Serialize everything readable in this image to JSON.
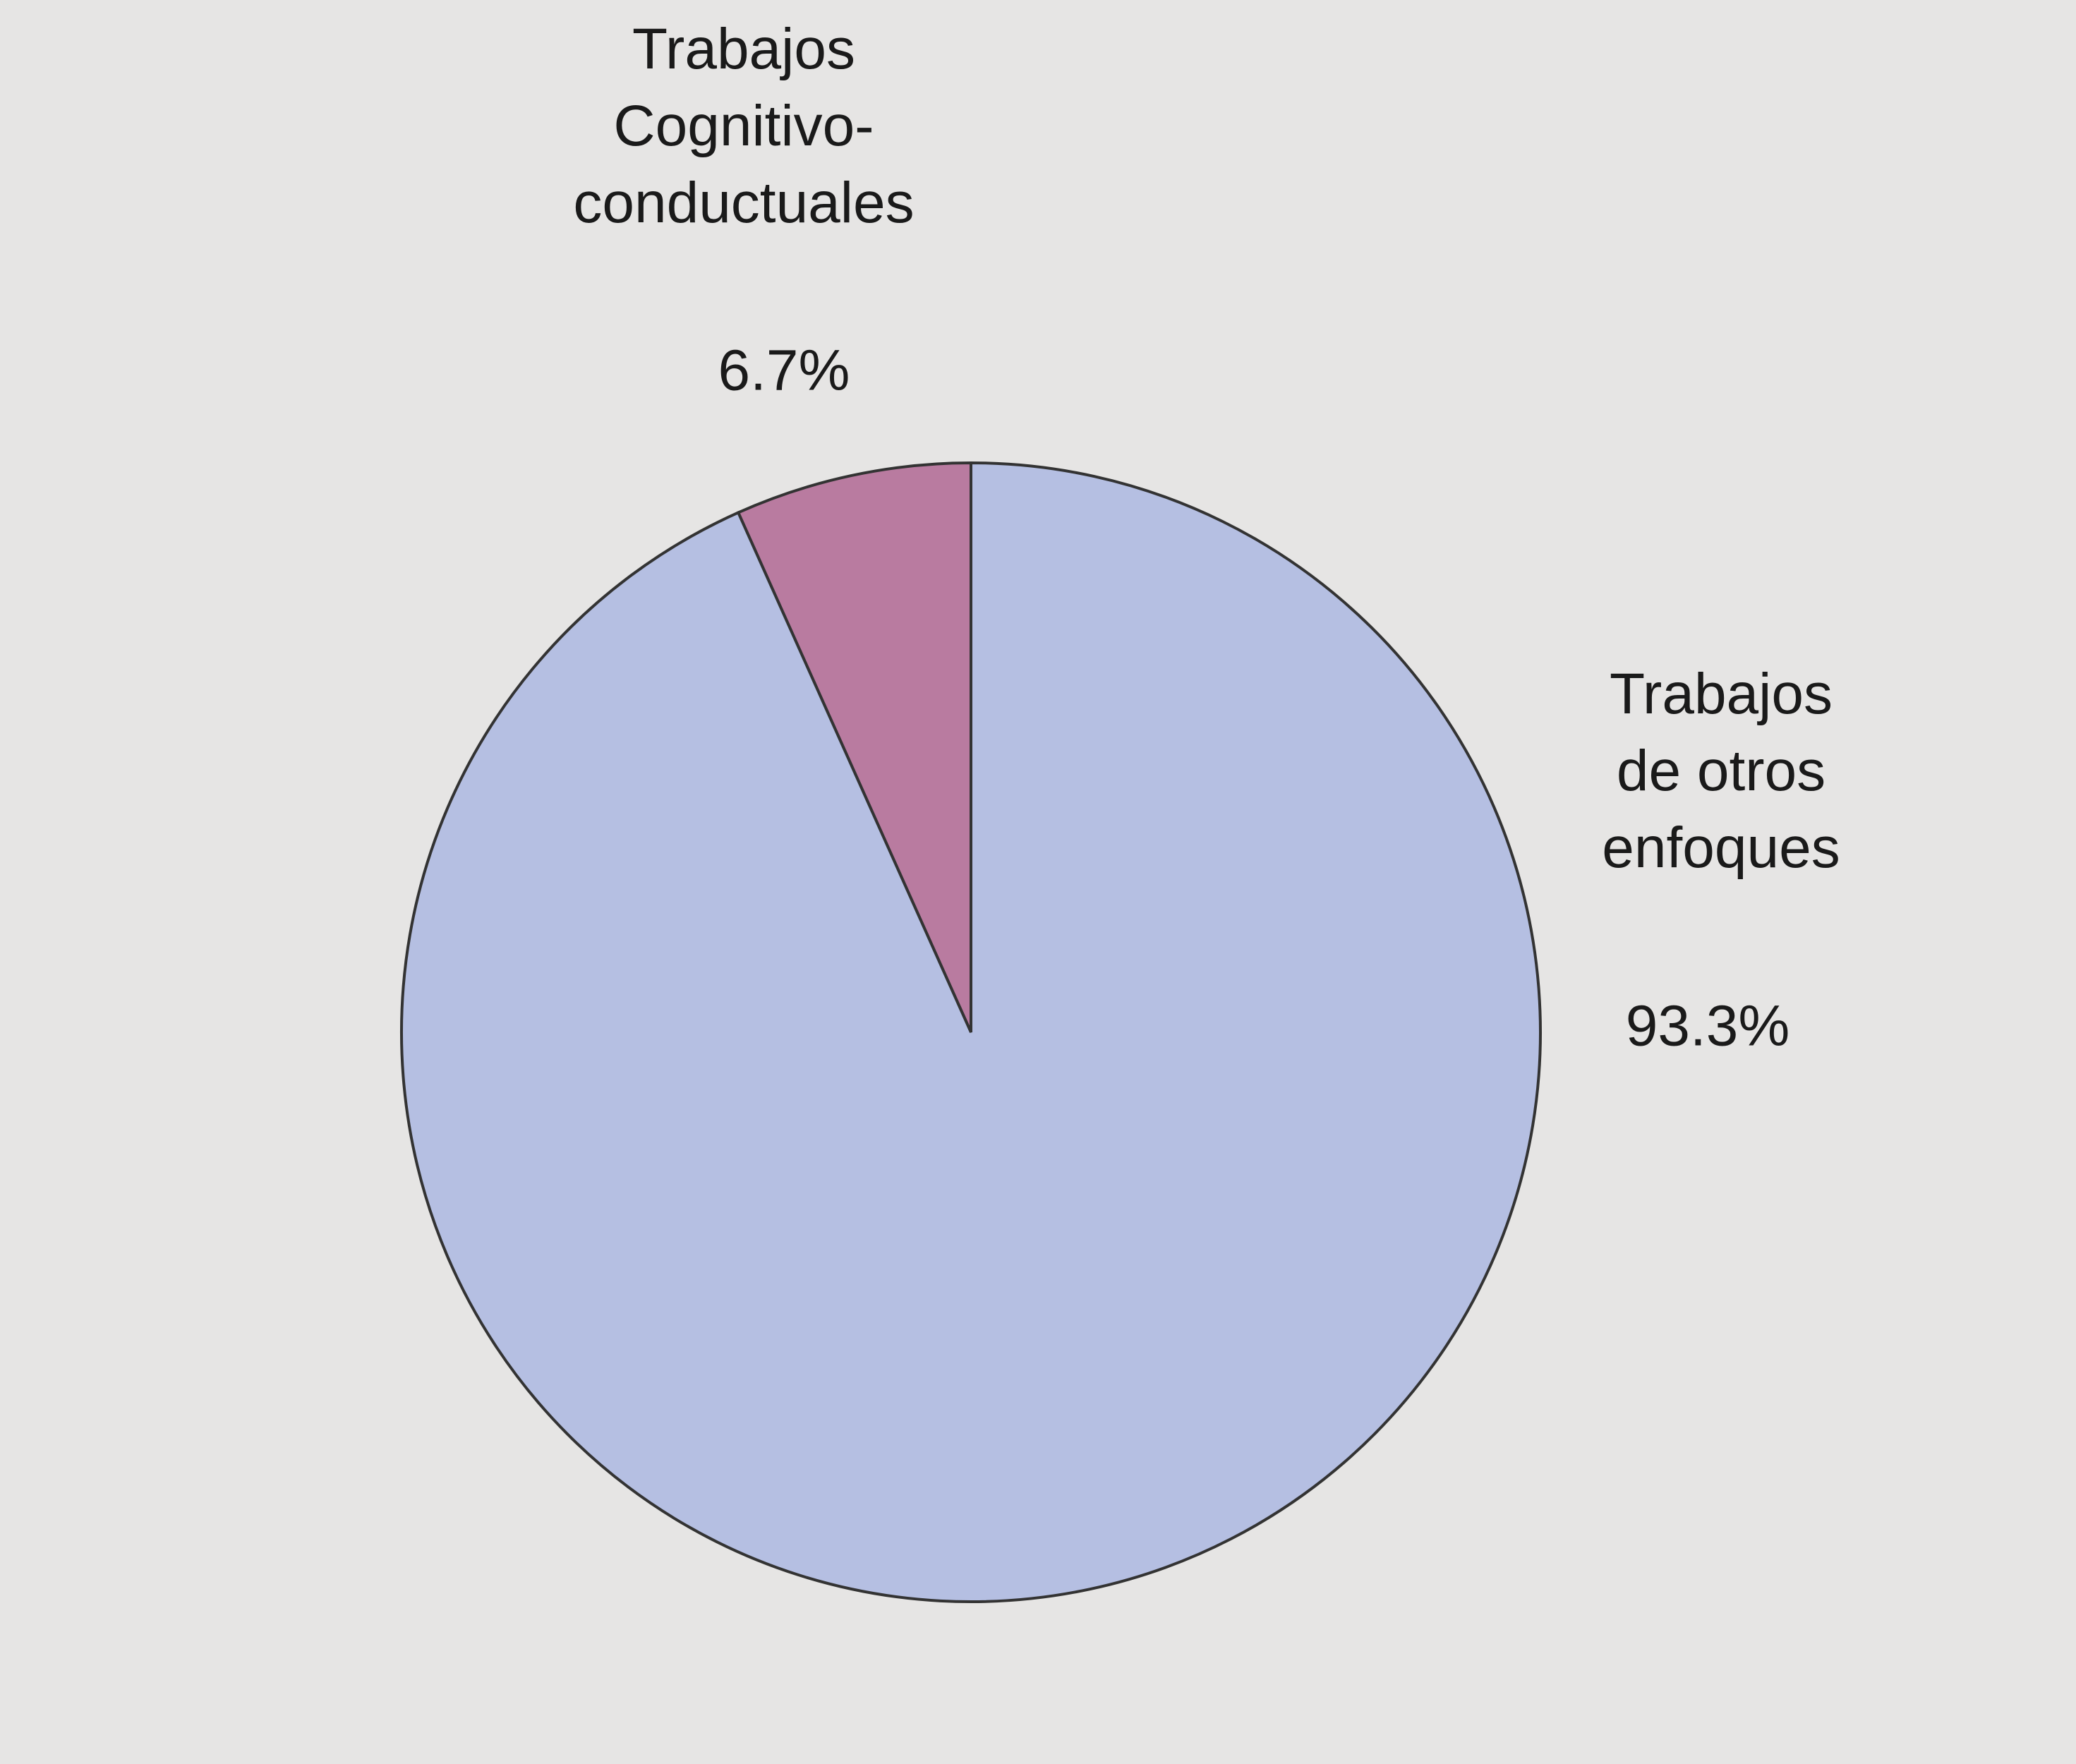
{
  "chart_data": {
    "type": "pie",
    "categories": [
      "Trabajos\nCognitivo-\nconductuales",
      "Trabajos\nde otros\nenfoques"
    ],
    "values": [
      6.7,
      93.3
    ],
    "value_labels": [
      "6.7%",
      "93.3%"
    ],
    "colors": [
      "#b97ba0",
      "#b5bfe2"
    ]
  }
}
